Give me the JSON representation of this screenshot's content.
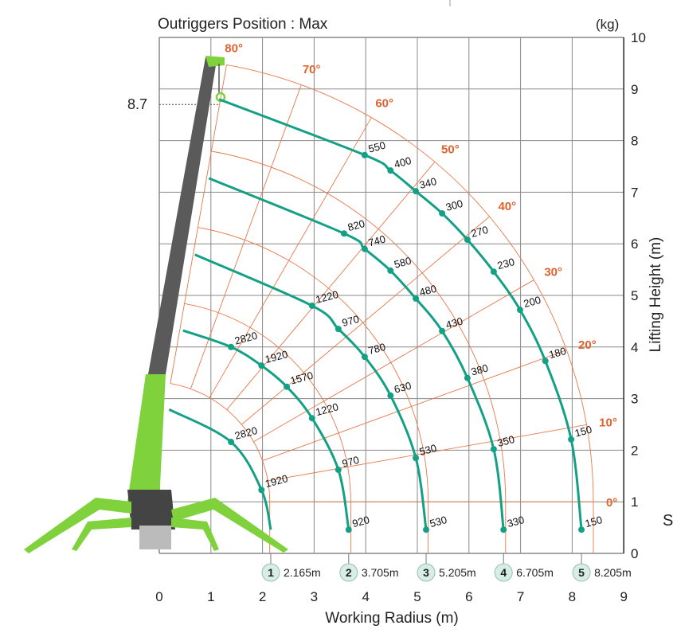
{
  "chart_data": {
    "type": "line",
    "title": "Outriggers Position : Max",
    "unit_label": "(kg)",
    "xlabel": "Working Radius (m)",
    "ylabel": "Lifting Height (m)",
    "xlim": [
      0,
      9
    ],
    "ylim": [
      0,
      10
    ],
    "x_ticks": [
      "0",
      "1",
      "2",
      "3",
      "4",
      "5",
      "6",
      "7",
      "8",
      "9"
    ],
    "y_ticks": [
      "0",
      "1",
      "2",
      "3",
      "4",
      "5",
      "6",
      "7",
      "8",
      "9",
      "10"
    ],
    "grid": true,
    "max_height_marker": {
      "value": 8.7,
      "label": "8.7"
    },
    "boom_pivot": [
      -0.19,
      1.0
    ],
    "angle_labels": [
      "0°",
      "10°",
      "20°",
      "30°",
      "40°",
      "50°",
      "60°",
      "70°",
      "80°"
    ],
    "angles": [
      0,
      10,
      20,
      30,
      40,
      50,
      60,
      70,
      80
    ],
    "series": [
      {
        "name": "1",
        "boom_length_label": "2.165m",
        "start": [
          0.19,
          2.79
        ],
        "points": [
          {
            "x": 1.39,
            "y": 2.16,
            "label": "2820"
          },
          {
            "x": 1.98,
            "y": 1.23,
            "label": "1920"
          }
        ],
        "end": [
          2.16,
          0.46
        ]
      },
      {
        "name": "2",
        "boom_length_label": "3.705m",
        "start": [
          0.46,
          4.32
        ],
        "points": [
          {
            "x": 1.39,
            "y": 4.0,
            "label": "2820"
          },
          {
            "x": 1.98,
            "y": 3.64,
            "label": "1920"
          },
          {
            "x": 2.47,
            "y": 3.23,
            "label": "1570"
          },
          {
            "x": 2.96,
            "y": 2.62,
            "label": "1220"
          },
          {
            "x": 3.47,
            "y": 1.62,
            "label": "970"
          },
          {
            "x": 3.67,
            "y": 0.46,
            "label": "920"
          }
        ],
        "end": [
          3.67,
          0.46
        ]
      },
      {
        "name": "3",
        "boom_length_label": "5.205m",
        "start": [
          0.69,
          5.79
        ],
        "points": [
          {
            "x": 2.96,
            "y": 4.8,
            "label": "1220"
          },
          {
            "x": 3.47,
            "y": 4.35,
            "label": "970"
          },
          {
            "x": 3.98,
            "y": 3.81,
            "label": "780"
          },
          {
            "x": 4.48,
            "y": 3.06,
            "label": "630"
          },
          {
            "x": 4.97,
            "y": 1.85,
            "label": "530"
          },
          {
            "x": 5.17,
            "y": 0.46,
            "label": "530"
          }
        ],
        "end": [
          5.17,
          0.46
        ]
      },
      {
        "name": "4",
        "boom_length_label": "6.705m",
        "start": [
          0.96,
          7.27
        ],
        "points": [
          {
            "x": 3.58,
            "y": 6.2,
            "label": "820"
          },
          {
            "x": 3.98,
            "y": 5.9,
            "label": "740"
          },
          {
            "x": 4.48,
            "y": 5.48,
            "label": "580"
          },
          {
            "x": 4.97,
            "y": 4.94,
            "label": "480"
          },
          {
            "x": 5.48,
            "y": 4.31,
            "label": "430"
          },
          {
            "x": 5.97,
            "y": 3.4,
            "label": "380"
          },
          {
            "x": 6.48,
            "y": 2.02,
            "label": "350"
          },
          {
            "x": 6.67,
            "y": 0.46,
            "label": "330"
          }
        ],
        "end": [
          6.67,
          0.46
        ]
      },
      {
        "name": "5",
        "boom_length_label": "8.205m",
        "start": [
          1.16,
          8.8
        ],
        "points": [
          {
            "x": 3.98,
            "y": 7.72,
            "label": "550"
          },
          {
            "x": 4.48,
            "y": 7.42,
            "label": "400"
          },
          {
            "x": 4.97,
            "y": 7.02,
            "label": "340"
          },
          {
            "x": 5.48,
            "y": 6.59,
            "label": "300"
          },
          {
            "x": 5.97,
            "y": 6.08,
            "label": "270"
          },
          {
            "x": 6.48,
            "y": 5.46,
            "label": "230"
          },
          {
            "x": 6.99,
            "y": 4.72,
            "label": "200"
          },
          {
            "x": 7.48,
            "y": 3.73,
            "label": "180"
          },
          {
            "x": 7.98,
            "y": 2.21,
            "label": "150"
          },
          {
            "x": 8.18,
            "y": 0.46,
            "label": "150"
          }
        ],
        "end": [
          8.18,
          0.46
        ]
      }
    ],
    "arc_radii_m": [
      2.33,
      3.9,
      5.4,
      6.9,
      8.6
    ],
    "colors": {
      "curve": "#13a085",
      "angle": "#e8784a",
      "angle_text": "#e0622e",
      "grid": "#888888",
      "boom": "#5a5a5a",
      "crane": "#7fd23c",
      "badge": "#d6eee3"
    }
  },
  "edge_text": "S"
}
